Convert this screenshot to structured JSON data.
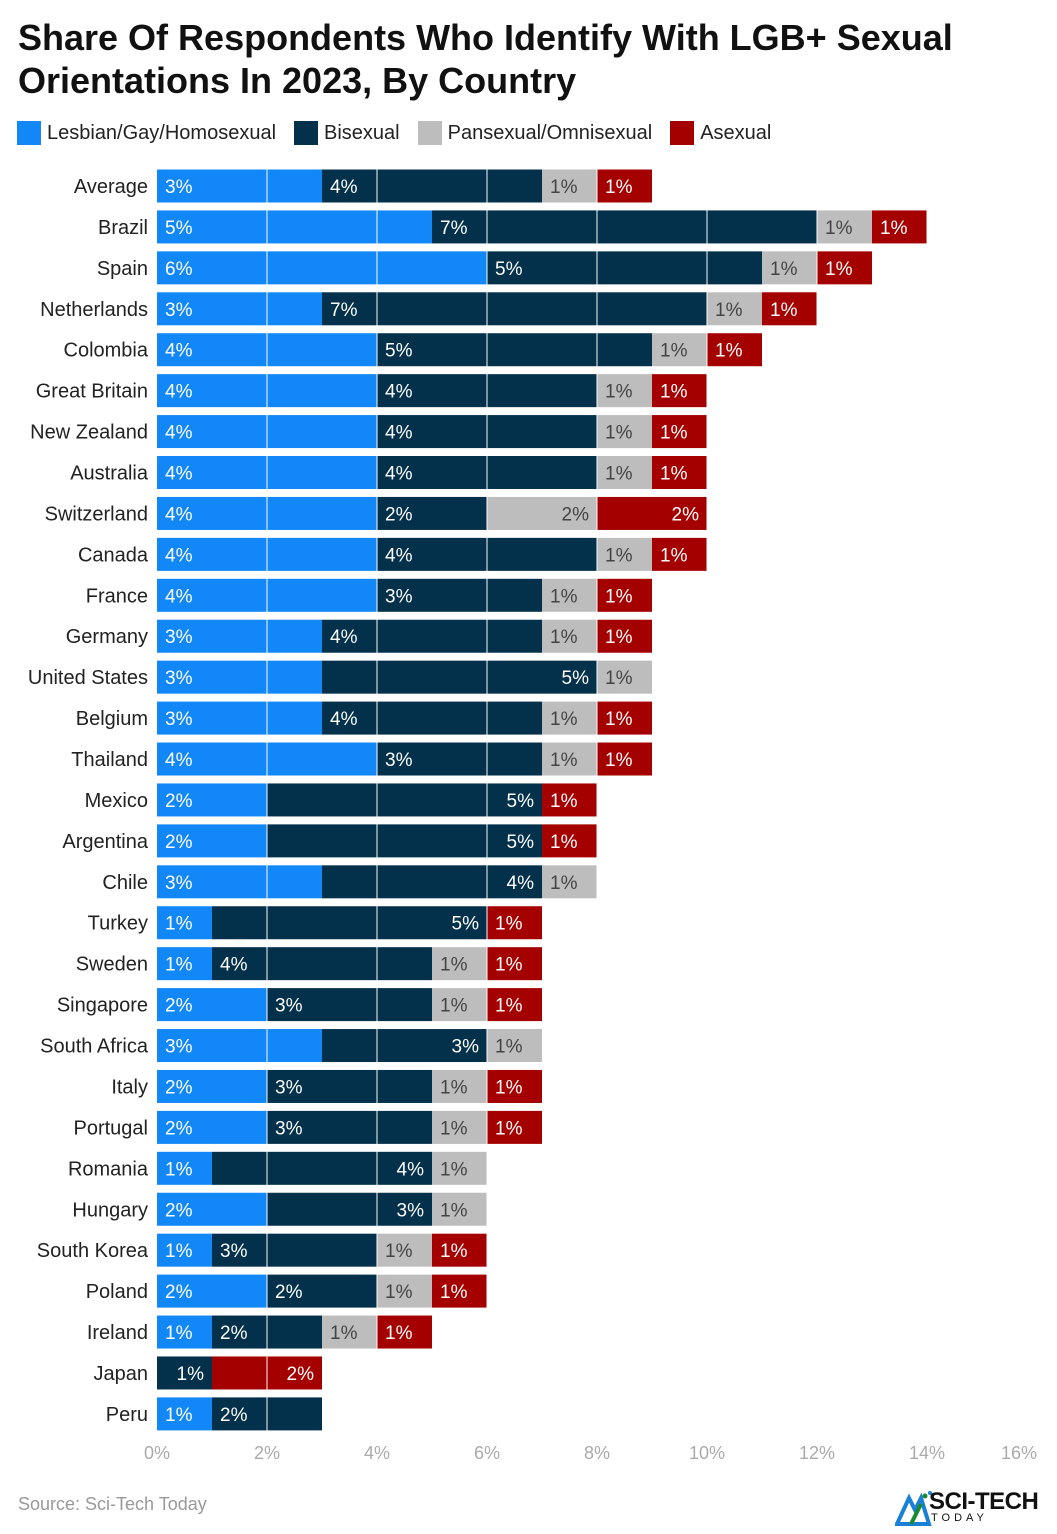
{
  "chart_data": {
    "type": "bar",
    "orientation": "horizontal",
    "stacked": true,
    "title": "Share Of Respondents Who Identify With LGB+ Sexual Orientations In 2023, By Country",
    "categories": [
      "Average",
      "Brazil",
      "Spain",
      "Netherlands",
      "Colombia",
      "Great Britain",
      "New Zealand",
      "Australia",
      "Switzerland",
      "Canada",
      "France",
      "Germany",
      "United States",
      "Belgium",
      "Thailand",
      "Mexico",
      "Argentina",
      "Chile",
      "Turkey",
      "Sweden",
      "Singapore",
      "South Africa",
      "Italy",
      "Portugal",
      "Romania",
      "Hungary",
      "South Korea",
      "Poland",
      "Ireland",
      "Japan",
      "Peru"
    ],
    "series": [
      {
        "name": "Lesbian/Gay/Homosexual",
        "color": "#1287f7",
        "values": [
          3,
          5,
          6,
          3,
          4,
          4,
          4,
          4,
          4,
          4,
          4,
          3,
          3,
          3,
          4,
          2,
          2,
          3,
          1,
          1,
          2,
          3,
          2,
          2,
          1,
          2,
          1,
          2,
          1,
          0,
          1
        ]
      },
      {
        "name": "Bisexual",
        "color": "#03304a",
        "values": [
          4,
          7,
          5,
          7,
          5,
          4,
          4,
          4,
          2,
          4,
          3,
          4,
          5,
          4,
          3,
          5,
          5,
          4,
          5,
          4,
          3,
          3,
          3,
          3,
          4,
          3,
          3,
          2,
          2,
          1,
          2
        ]
      },
      {
        "name": "Pansexual/Omnisexual",
        "color": "#bdbdbd",
        "values": [
          1,
          1,
          1,
          1,
          1,
          1,
          1,
          1,
          2,
          1,
          1,
          1,
          1,
          1,
          1,
          0,
          0,
          1,
          0,
          1,
          1,
          1,
          1,
          1,
          1,
          1,
          1,
          1,
          1,
          0,
          0
        ]
      },
      {
        "name": "Asexual",
        "color": "#a50000",
        "values": [
          1,
          1,
          1,
          1,
          1,
          1,
          1,
          1,
          2,
          1,
          1,
          1,
          0,
          1,
          1,
          1,
          1,
          0,
          1,
          1,
          1,
          0,
          1,
          1,
          0,
          0,
          1,
          1,
          1,
          2,
          0
        ]
      }
    ],
    "xlim": [
      0,
      16
    ],
    "xticks": [
      "0%",
      "2%",
      "4%",
      "6%",
      "8%",
      "10%",
      "12%",
      "14%",
      "16%"
    ],
    "grid": true,
    "legend": "top-left",
    "value_suffix": "%"
  },
  "source": "Source: Sci-Tech Today",
  "logo": {
    "line1": "SCI-TECH",
    "line2": "TODAY"
  }
}
